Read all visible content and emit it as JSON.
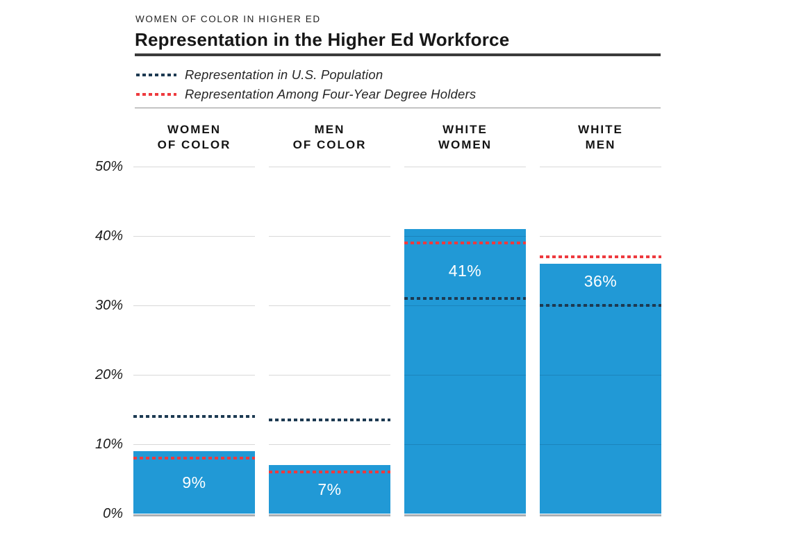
{
  "header": {
    "eyebrow": "WOMEN OF COLOR IN HIGHER ED",
    "title": "Representation in the Higher Ed Workforce"
  },
  "legend": {
    "items": [
      {
        "label": "Representation in U.S. Population",
        "color": "#1d3a52"
      },
      {
        "label": "Representation Among Four-Year Degree Holders",
        "color": "#ee3a3e"
      }
    ]
  },
  "chart_data": {
    "type": "bar",
    "title": "Representation in the Higher Ed Workforce",
    "categories": [
      "WOMEN OF COLOR",
      "MEN OF COLOR",
      "WHITE WOMEN",
      "WHITE MEN"
    ],
    "category_lines": [
      [
        "WOMEN",
        "OF COLOR"
      ],
      [
        "MEN",
        "OF COLOR"
      ],
      [
        "WHITE",
        "WOMEN"
      ],
      [
        "WHITE",
        "MEN"
      ]
    ],
    "series": [
      {
        "name": "Representation in the Higher Ed Workforce",
        "render": "bar",
        "values": [
          9,
          7,
          41,
          36
        ],
        "labels": [
          "9%",
          "7%",
          "41%",
          "36%"
        ],
        "color": "#2199d6"
      },
      {
        "name": "Representation in U.S. Population",
        "render": "dotted-line",
        "values": [
          14,
          13.5,
          31,
          30
        ],
        "color": "#1d3a52"
      },
      {
        "name": "Representation Among Four-Year Degree Holders",
        "render": "dotted-line",
        "values": [
          8,
          6,
          39,
          37
        ],
        "color": "#ee3a3e"
      }
    ],
    "xlabel": "",
    "ylabel": "",
    "ylim": [
      0,
      50
    ],
    "yticks": [
      0,
      10,
      20,
      30,
      40,
      50
    ],
    "ytick_labels": [
      "0%",
      "10%",
      "20%",
      "30%",
      "40%",
      "50%"
    ],
    "grid": "horizontal, segmented per column",
    "legend_position": "top-left under title"
  }
}
